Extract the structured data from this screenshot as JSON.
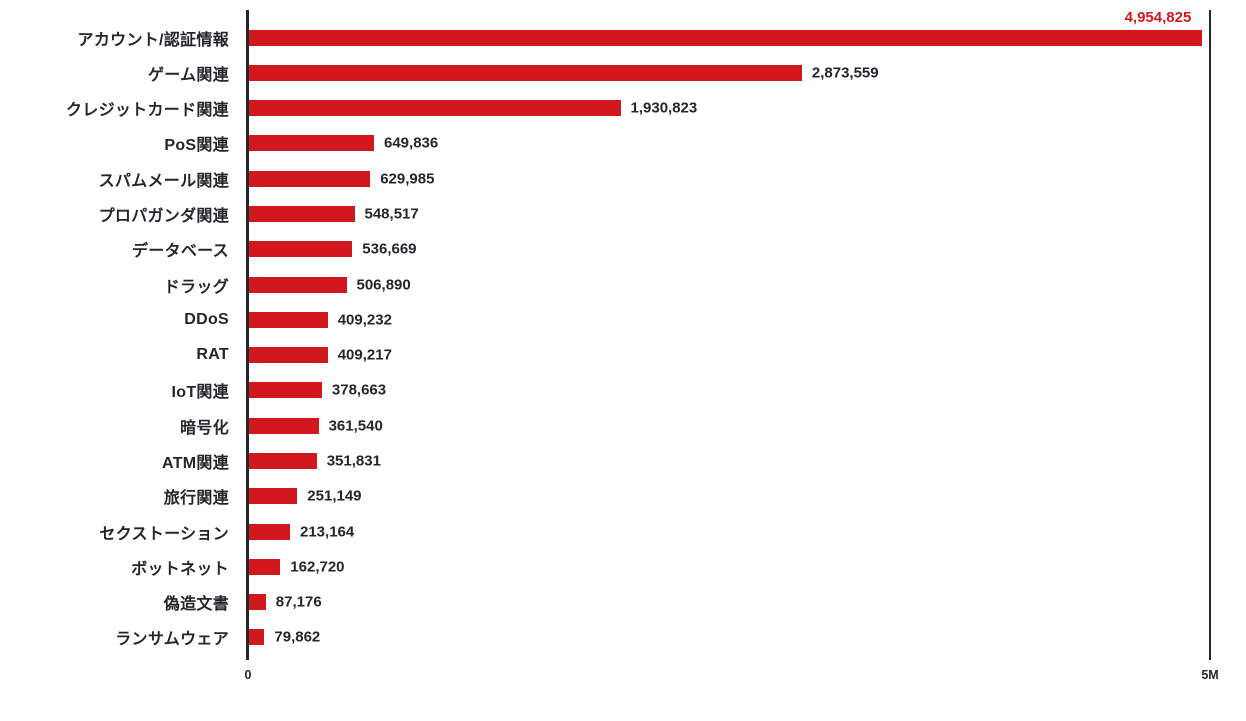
{
  "chart_data": {
    "type": "bar",
    "orientation": "horizontal",
    "title": "",
    "xlabel": "",
    "ylabel": "",
    "categories": [
      "アカウント/認証情報",
      "ゲーム関連",
      "クレジットカード関連",
      "PoS関連",
      "スパムメール関連",
      "プロパガンダ関連",
      "データベース",
      "ドラッグ",
      "DDoS",
      "RAT",
      "IoT関連",
      "暗号化",
      "ATM関連",
      "旅行関連",
      "セクストーション",
      "ボットネット",
      "偽造文書",
      "ランサムウェア"
    ],
    "values": [
      4954825,
      2873559,
      1930823,
      649836,
      629985,
      548517,
      536669,
      506890,
      409232,
      409217,
      378663,
      361540,
      351831,
      251149,
      213164,
      162720,
      87176,
      79862
    ],
    "value_labels": [
      "4,954,825",
      "2,873,559",
      "1,930,823",
      "649,836",
      "629,985",
      "548,517",
      "536,669",
      "506,890",
      "409,232",
      "409,217",
      "378,663",
      "361,540",
      "351,831",
      "251,149",
      "213,164",
      "162,720",
      "87,176",
      "79,862"
    ],
    "xlim": [
      0,
      5000000
    ],
    "x_ticks": [
      {
        "value": 0,
        "label": "0"
      },
      {
        "value": 5000000,
        "label": "5M"
      }
    ],
    "grid": false,
    "legend": "none"
  },
  "colors": {
    "background": "#ffffff",
    "bar": "#d2181f",
    "category_label": "#24262c",
    "value_label": "#24262c",
    "value_label_overflow": "#d2181f",
    "axis_line": "#24262c",
    "tick_label": "#24262c"
  }
}
